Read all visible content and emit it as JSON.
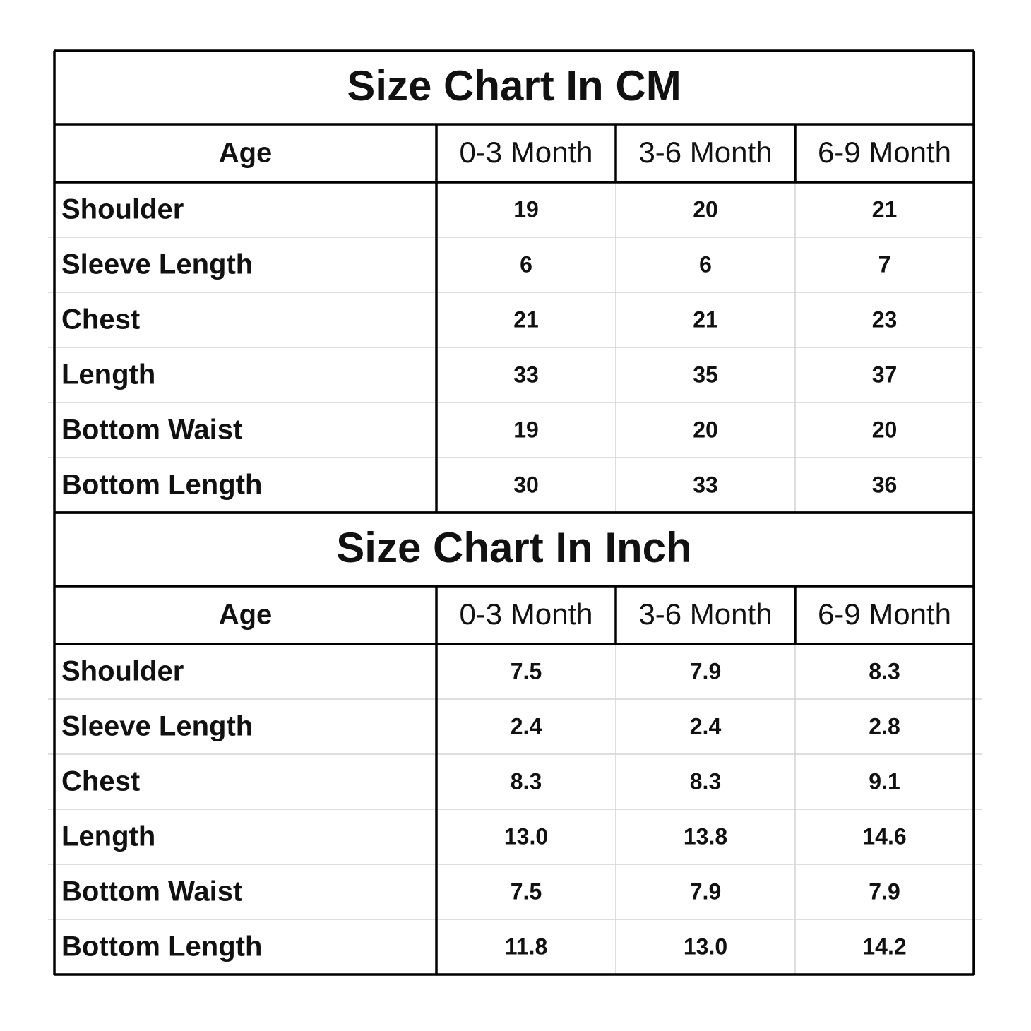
{
  "tables": [
    {
      "title": "Size Chart In CM",
      "header": [
        "Age",
        "0-3 Month",
        "3-6 Month",
        "6-9 Month"
      ],
      "rows": [
        [
          "Shoulder",
          "19",
          "20",
          "21"
        ],
        [
          "Sleeve Length",
          "6",
          "6",
          "7"
        ],
        [
          "Chest",
          "21",
          "21",
          "23"
        ],
        [
          "Length",
          "33",
          "35",
          "37"
        ],
        [
          "Bottom Waist",
          "19",
          "20",
          "20"
        ],
        [
          "Bottom Length",
          "30",
          "33",
          "36"
        ]
      ]
    },
    {
      "title": "Size Chart In Inch",
      "header": [
        "Age",
        "0-3 Month",
        "3-6 Month",
        "6-9 Month"
      ],
      "rows": [
        [
          "Shoulder",
          "7.5",
          "7.9",
          "8.3"
        ],
        [
          "Sleeve Length",
          "2.4",
          "2.4",
          "2.8"
        ],
        [
          "Chest",
          "8.3",
          "8.3",
          "9.1"
        ],
        [
          "Length",
          "13.0",
          "13.8",
          "14.6"
        ],
        [
          "Bottom Waist",
          "7.5",
          "7.9",
          "7.9"
        ],
        [
          "Bottom Length",
          "11.8",
          "13.0",
          "14.2"
        ]
      ]
    }
  ]
}
